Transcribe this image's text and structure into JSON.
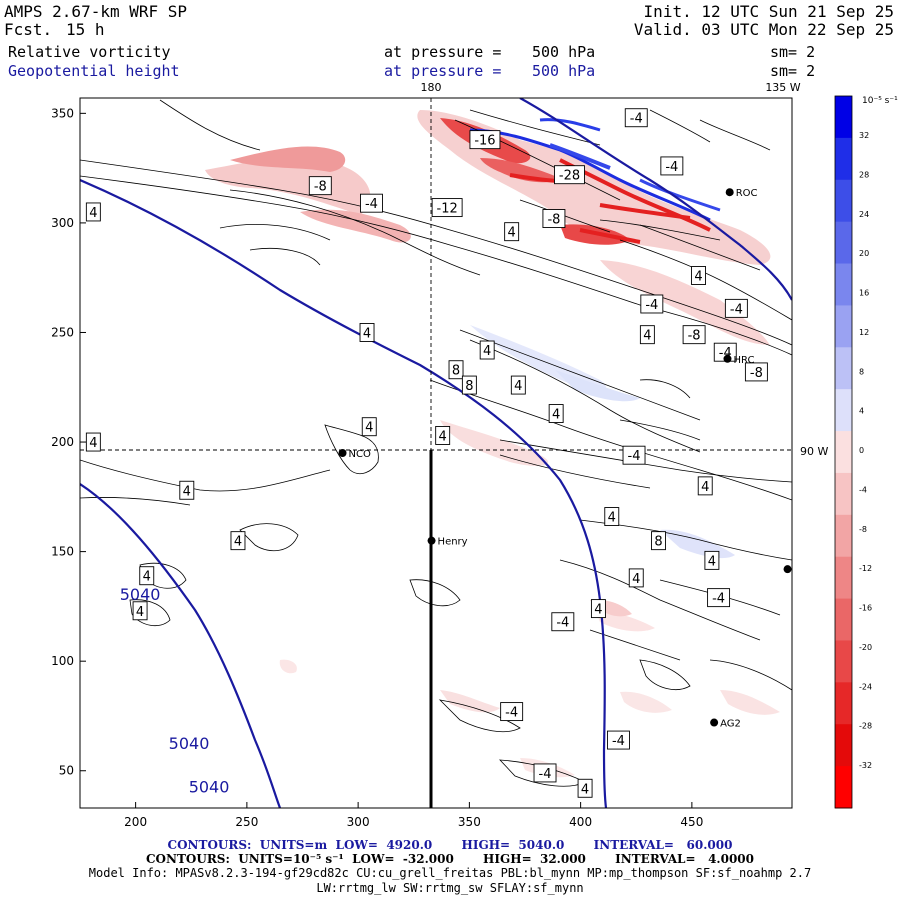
{
  "header": {
    "model": "AMPS 2.67-km WRF SP",
    "fcst_label": "Fcst.",
    "fcst_value": "15 h",
    "init": "Init. 12 UTC Sun 21 Sep 25",
    "valid": "Valid. 03 UTC Mon 22 Sep 25",
    "field1": {
      "name": "Relative vorticity",
      "level_label": "at pressure =",
      "level": "500 hPa",
      "sm": "sm= 2"
    },
    "field2": {
      "name": "Geopotential height",
      "level_label": "at pressure =",
      "level": "500 hPa",
      "sm": "sm= 2"
    }
  },
  "map": {
    "meridian_top_label": "180",
    "meridian_135_label": "135 W",
    "meridian_90_label": "90 W",
    "x_ticks": [
      200,
      250,
      300,
      350,
      400,
      450
    ],
    "y_ticks": [
      50,
      100,
      150,
      200,
      250,
      300,
      350
    ],
    "x_range": [
      175,
      495
    ],
    "y_range": [
      33,
      357
    ],
    "stations": [
      {
        "name": "NCO",
        "x": 293,
        "y": 195
      },
      {
        "name": "Henry",
        "x": 333,
        "y": 155
      },
      {
        "name": "HRC",
        "x": 466,
        "y": 238
      },
      {
        "name": "AG2",
        "x": 460,
        "y": 72
      },
      {
        "name": "ROC",
        "x": 467,
        "y": 314
      },
      {
        "name": "",
        "x": 493,
        "y": 142
      }
    ],
    "height_contours": [
      {
        "label": "5040",
        "label_x": 202,
        "label_y": 128
      },
      {
        "label": "5040",
        "label_x": 224,
        "label_y": 60
      },
      {
        "label": "5040",
        "label_x": 233,
        "label_y": 40
      }
    ],
    "vort_labels": [
      {
        "t": "-4",
        "x": 425,
        "y": 348
      },
      {
        "t": "-16",
        "x": 357,
        "y": 338
      },
      {
        "t": "-28",
        "x": 395,
        "y": 322
      },
      {
        "t": "-4",
        "x": 441,
        "y": 326
      },
      {
        "t": "-8",
        "x": 283,
        "y": 317
      },
      {
        "t": "-4",
        "x": 306,
        "y": 309
      },
      {
        "t": "-12",
        "x": 340,
        "y": 307
      },
      {
        "t": "-8",
        "x": 388,
        "y": 302
      },
      {
        "t": "4",
        "x": 181,
        "y": 305
      },
      {
        "t": "4",
        "x": 369,
        "y": 296
      },
      {
        "t": "4",
        "x": 453,
        "y": 276
      },
      {
        "t": "-4",
        "x": 432,
        "y": 263
      },
      {
        "t": "-4",
        "x": 470,
        "y": 261
      },
      {
        "t": "4",
        "x": 304,
        "y": 250
      },
      {
        "t": "4",
        "x": 430,
        "y": 249
      },
      {
        "t": "-8",
        "x": 451,
        "y": 249
      },
      {
        "t": "-4",
        "x": 465,
        "y": 241
      },
      {
        "t": "4",
        "x": 358,
        "y": 242
      },
      {
        "t": "8",
        "x": 344,
        "y": 233
      },
      {
        "t": "8",
        "x": 350,
        "y": 226
      },
      {
        "t": "4",
        "x": 372,
        "y": 226
      },
      {
        "t": "-8",
        "x": 479,
        "y": 232
      },
      {
        "t": "4",
        "x": 389,
        "y": 213
      },
      {
        "t": "4",
        "x": 305,
        "y": 207
      },
      {
        "t": "4",
        "x": 338,
        "y": 203
      },
      {
        "t": "4",
        "x": 181,
        "y": 200
      },
      {
        "t": "-4",
        "x": 424,
        "y": 194
      },
      {
        "t": "4",
        "x": 223,
        "y": 178
      },
      {
        "t": "4",
        "x": 456,
        "y": 180
      },
      {
        "t": "4",
        "x": 414,
        "y": 166
      },
      {
        "t": "8",
        "x": 435,
        "y": 155
      },
      {
        "t": "4",
        "x": 246,
        "y": 155
      },
      {
        "t": "4",
        "x": 459,
        "y": 146
      },
      {
        "t": "4",
        "x": 205,
        "y": 139
      },
      {
        "t": "4",
        "x": 425,
        "y": 138
      },
      {
        "t": "-4",
        "x": 462,
        "y": 129
      },
      {
        "t": "4",
        "x": 202,
        "y": 123
      },
      {
        "t": "4",
        "x": 408,
        "y": 124
      },
      {
        "t": "-4",
        "x": 392,
        "y": 118
      },
      {
        "t": "-4",
        "x": 369,
        "y": 77
      },
      {
        "t": "-4",
        "x": 417,
        "y": 64
      },
      {
        "t": "-4",
        "x": 384,
        "y": 49
      },
      {
        "t": "4",
        "x": 402,
        "y": 42
      }
    ]
  },
  "colorbar": {
    "units": "10⁻⁵ s⁻¹",
    "labels": [
      "32",
      "28",
      "24",
      "20",
      "16",
      "12",
      "8",
      "4",
      "0",
      "-4",
      "-8",
      "-12",
      "-16",
      "-20",
      "-24",
      "-28",
      "-32"
    ],
    "colors": [
      "#0000e6",
      "#1f2ee8",
      "#3d4ee8",
      "#5a68ea",
      "#7a86ee",
      "#9aa2f2",
      "#bcc1f6",
      "#dde0fa",
      "#fbe0e0",
      "#f7c4c4",
      "#f2a5a5",
      "#ee8686",
      "#ea6767",
      "#e84848",
      "#e62828",
      "#e40a0a",
      "#ff0000"
    ]
  },
  "footer": {
    "line1": "CONTOURS:  UNITS=m  LOW=  4920.0       HIGH=  5040.0       INTERVAL=   60.000",
    "line2": "CONTOURS:  UNITS=10⁻⁵ s⁻¹  LOW=  -32.000       HIGH=  32.000       INTERVAL=   4.0000",
    "line3": "Model Info: MPASv8.2.3-194-gf29cd82c CU:cu_grell_freitas PBL:bl_mynn MP:mp_thompson SF:sf_noahmp 2.7",
    "line4": "LW:rrtmg_lw SW:rrtmg_sw SFLAY:sf_mynn"
  }
}
